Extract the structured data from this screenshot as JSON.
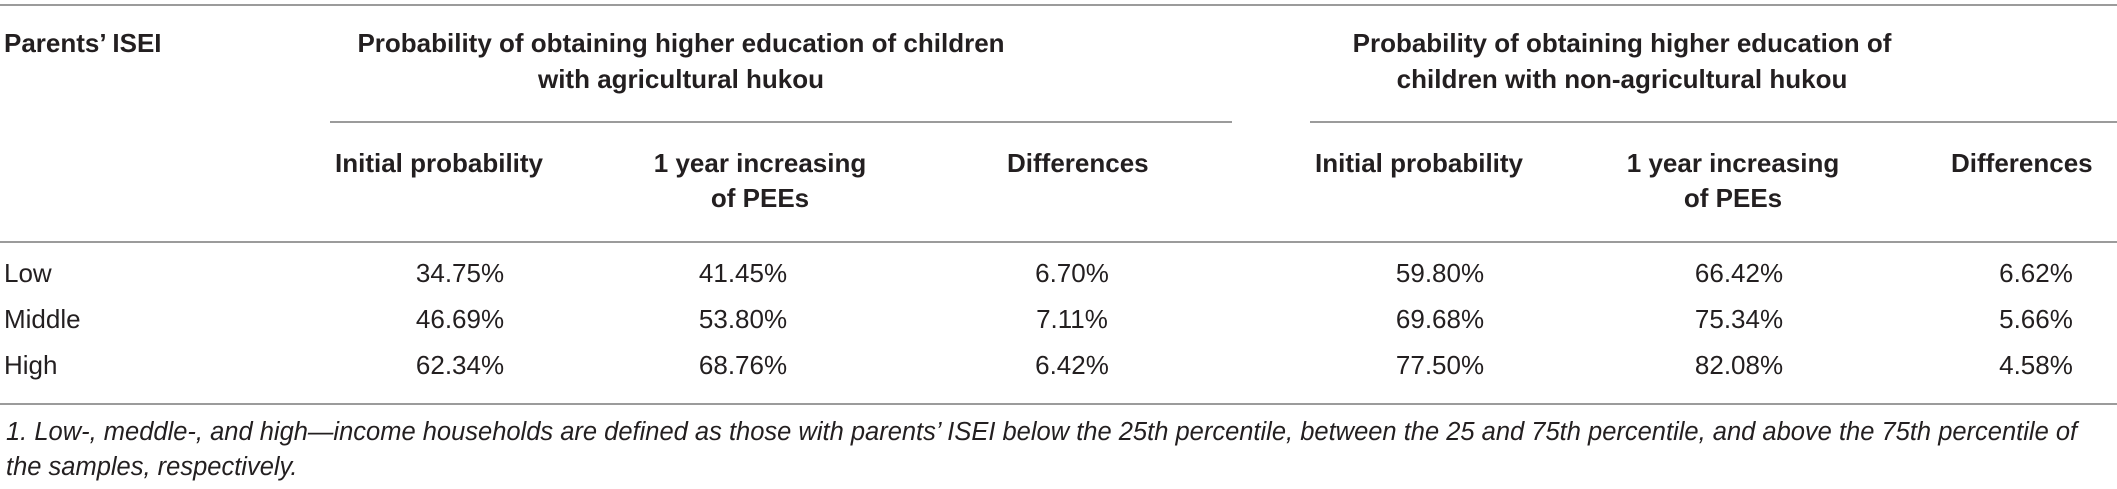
{
  "table": {
    "row_header": "Parents’ ISEI",
    "groups": [
      {
        "title_line1": "Probability of obtaining higher education of children",
        "title_line2": "with agricultural hukou",
        "cols": [
          {
            "line1": "Initial probability",
            "line2": ""
          },
          {
            "line1": "1 year increasing",
            "line2": "of PEEs"
          },
          {
            "line1": "Differences",
            "line2": ""
          }
        ]
      },
      {
        "title_line1": "Probability of obtaining higher education of",
        "title_line2": "children with non-agricultural hukou",
        "cols": [
          {
            "line1": "Initial probability",
            "line2": ""
          },
          {
            "line1": "1 year increasing",
            "line2": "of PEEs"
          },
          {
            "line1": "Differences",
            "line2": ""
          }
        ]
      }
    ],
    "rows": [
      {
        "label": "Low",
        "values": [
          "34.75%",
          "41.45%",
          "6.70%",
          "59.80%",
          "66.42%",
          "6.62%"
        ]
      },
      {
        "label": "Middle",
        "values": [
          "46.69%",
          "53.80%",
          "7.11%",
          "69.68%",
          "75.34%",
          "5.66%"
        ]
      },
      {
        "label": "High",
        "values": [
          "62.34%",
          "68.76%",
          "6.42%",
          "77.50%",
          "82.08%",
          "4.58%"
        ]
      }
    ]
  },
  "footnote": "1. Low-, meddle-, and high—income households are defined as those with parents’ ISEI below the 25th percentile, between the 25 and 75th percentile, and above the 75th percentile of the samples, respectively."
}
